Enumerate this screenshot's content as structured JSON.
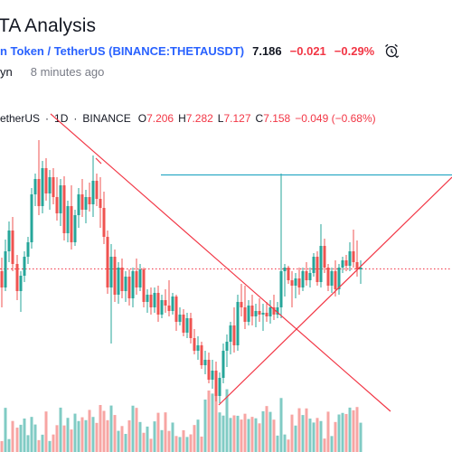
{
  "header": {
    "title": "TA Analysis",
    "symbol_link": "n Token / TetherUS (BINANCE:THETAUSDT)",
    "price": "7.186",
    "change": "−0.021",
    "change_percent": "−0.29%",
    "alarm_icon": "alarm-clock-icon",
    "author": "yn",
    "time_ago": "8 minutes ago"
  },
  "legend": {
    "symbol": "etherUS",
    "interval": "1D",
    "exchange": "BINANCE",
    "open_label": "O",
    "open": "7.206",
    "high_label": "H",
    "high": "7.282",
    "low_label": "L",
    "low": "7.127",
    "close_label": "C",
    "close": "7.158",
    "change": "−0.049 (−0.68%)"
  },
  "colors": {
    "up": "#26a69a",
    "down": "#ef5350",
    "up_volume": "#80cbc4",
    "down_volume": "#f7a5a3",
    "trendline": "#f23645",
    "hline": "#2eaac5",
    "link": "#2962ff"
  },
  "chart_data": {
    "type": "candlestick",
    "close_marker_style": "dotted",
    "drawings": [
      "descending trendline",
      "ascending trendline",
      "horizontal line"
    ]
  }
}
